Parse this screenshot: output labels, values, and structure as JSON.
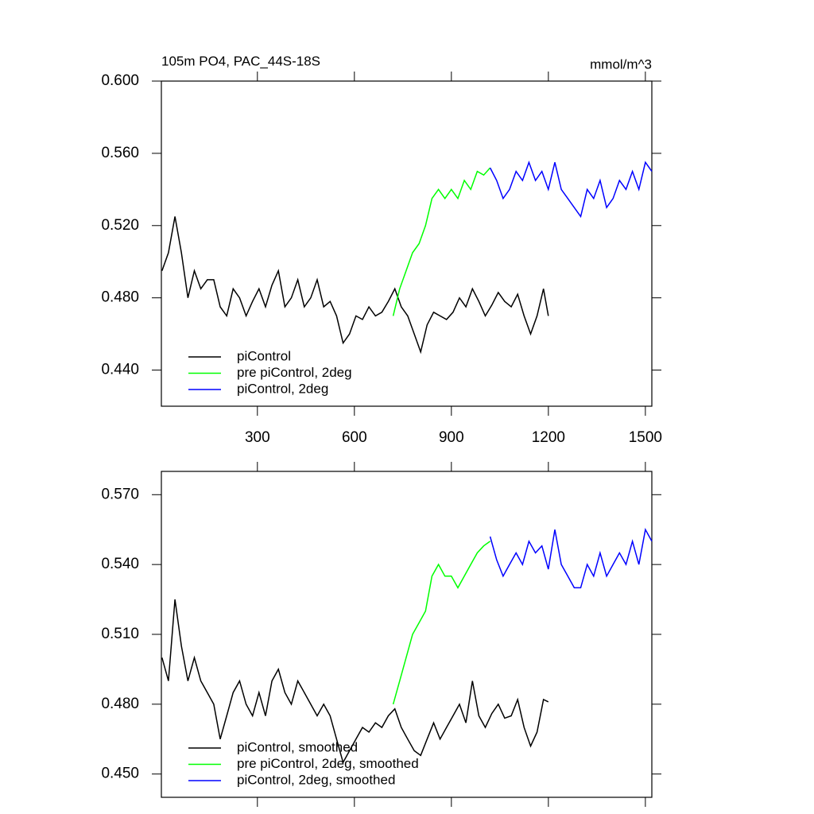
{
  "chart_data": [
    {
      "type": "line",
      "title": "105m PO4, PAC_44S-18S",
      "units": "mmol/m^3",
      "xlim": [
        3,
        1520
      ],
      "xticks": [
        300,
        600,
        900,
        1200,
        1500
      ],
      "xticklabels": true,
      "ylim": [
        0.42,
        0.6
      ],
      "yticks": [
        {
          "value": 0.44,
          "label": "0.440"
        },
        {
          "value": 0.48,
          "label": "0.480"
        },
        {
          "value": 0.52,
          "label": "0.520"
        },
        {
          "value": 0.56,
          "label": "0.560"
        },
        {
          "value": 0.6,
          "label": "0.600"
        }
      ],
      "legend": "lower left",
      "series": [
        {
          "name": "piControl",
          "color": "#000000",
          "x": [
            5,
            25,
            45,
            65,
            85,
            105,
            125,
            145,
            165,
            185,
            205,
            225,
            245,
            265,
            285,
            305,
            325,
            345,
            365,
            385,
            405,
            425,
            445,
            465,
            485,
            505,
            525,
            545,
            565,
            585,
            605,
            625,
            645,
            665,
            685,
            705,
            725,
            745,
            765,
            785,
            805,
            825,
            845,
            865,
            885,
            905,
            925,
            945,
            965,
            985,
            1005,
            1025,
            1045,
            1065,
            1085,
            1105,
            1125,
            1145,
            1165,
            1185,
            1200
          ],
          "values": [
            0.495,
            0.505,
            0.525,
            0.505,
            0.48,
            0.495,
            0.485,
            0.49,
            0.49,
            0.475,
            0.47,
            0.485,
            0.48,
            0.47,
            0.478,
            0.485,
            0.475,
            0.487,
            0.495,
            0.475,
            0.48,
            0.49,
            0.475,
            0.48,
            0.49,
            0.475,
            0.478,
            0.47,
            0.455,
            0.46,
            0.47,
            0.468,
            0.475,
            0.47,
            0.472,
            0.478,
            0.485,
            0.475,
            0.47,
            0.46,
            0.45,
            0.465,
            0.472,
            0.47,
            0.468,
            0.472,
            0.48,
            0.475,
            0.485,
            0.478,
            0.47,
            0.476,
            0.483,
            0.478,
            0.475,
            0.482,
            0.47,
            0.46,
            0.47,
            0.485,
            0.47
          ]
        },
        {
          "name": "pre piControl, 2deg",
          "color": "#00ff00",
          "x": [
            720,
            740,
            760,
            780,
            800,
            820,
            840,
            860,
            880,
            900,
            920,
            940,
            960,
            980,
            1000,
            1020
          ],
          "values": [
            0.47,
            0.485,
            0.495,
            0.505,
            0.51,
            0.52,
            0.535,
            0.54,
            0.535,
            0.54,
            0.535,
            0.545,
            0.54,
            0.55,
            0.548,
            0.552
          ]
        },
        {
          "name": "piControl, 2deg",
          "color": "#0000ff",
          "x": [
            1020,
            1040,
            1060,
            1080,
            1100,
            1120,
            1140,
            1160,
            1180,
            1200,
            1220,
            1240,
            1260,
            1280,
            1300,
            1320,
            1340,
            1360,
            1380,
            1400,
            1420,
            1440,
            1460,
            1480,
            1500,
            1520
          ],
          "values": [
            0.552,
            0.545,
            0.535,
            0.54,
            0.55,
            0.545,
            0.555,
            0.545,
            0.55,
            0.54,
            0.555,
            0.54,
            0.535,
            0.53,
            0.525,
            0.54,
            0.535,
            0.545,
            0.53,
            0.535,
            0.545,
            0.54,
            0.55,
            0.54,
            0.555,
            0.55
          ]
        }
      ]
    },
    {
      "type": "line",
      "xlim": [
        3,
        1520
      ],
      "xticks": [
        300,
        600,
        900,
        1200,
        1500
      ],
      "xticklabels": false,
      "ylim": [
        0.44,
        0.58
      ],
      "yticks": [
        {
          "value": 0.45,
          "label": "0.450"
        },
        {
          "value": 0.48,
          "label": "0.480"
        },
        {
          "value": 0.51,
          "label": "0.510"
        },
        {
          "value": 0.54,
          "label": "0.540"
        },
        {
          "value": 0.57,
          "label": "0.570"
        }
      ],
      "legend": "lower left",
      "series": [
        {
          "name": "piControl, smoothed",
          "color": "#000000",
          "x": [
            5,
            25,
            45,
            65,
            85,
            105,
            125,
            145,
            165,
            185,
            205,
            225,
            245,
            265,
            285,
            305,
            325,
            345,
            365,
            385,
            405,
            425,
            445,
            465,
            485,
            505,
            525,
            545,
            565,
            585,
            605,
            625,
            645,
            665,
            685,
            705,
            725,
            745,
            765,
            785,
            805,
            825,
            845,
            865,
            885,
            905,
            925,
            945,
            965,
            985,
            1005,
            1025,
            1045,
            1065,
            1085,
            1105,
            1125,
            1145,
            1165,
            1185,
            1200
          ],
          "values": [
            0.5,
            0.49,
            0.525,
            0.505,
            0.49,
            0.5,
            0.49,
            0.485,
            0.48,
            0.465,
            0.475,
            0.485,
            0.49,
            0.48,
            0.475,
            0.485,
            0.475,
            0.49,
            0.495,
            0.485,
            0.48,
            0.49,
            0.485,
            0.48,
            0.475,
            0.48,
            0.475,
            0.465,
            0.455,
            0.46,
            0.465,
            0.47,
            0.468,
            0.472,
            0.47,
            0.475,
            0.478,
            0.47,
            0.465,
            0.46,
            0.458,
            0.465,
            0.472,
            0.465,
            0.47,
            0.475,
            0.48,
            0.472,
            0.49,
            0.475,
            0.47,
            0.476,
            0.48,
            0.474,
            0.475,
            0.482,
            0.47,
            0.462,
            0.468,
            0.482,
            0.481
          ]
        },
        {
          "name": "pre piControl, 2deg, smoothed",
          "color": "#00ff00",
          "x": [
            720,
            740,
            760,
            780,
            800,
            820,
            840,
            860,
            880,
            900,
            920,
            940,
            960,
            980,
            1000,
            1020
          ],
          "values": [
            0.48,
            0.49,
            0.5,
            0.51,
            0.515,
            0.52,
            0.535,
            0.54,
            0.535,
            0.535,
            0.53,
            0.535,
            0.54,
            0.545,
            0.548,
            0.55
          ]
        },
        {
          "name": "piControl, 2deg, smoothed",
          "color": "#0000ff",
          "x": [
            1020,
            1040,
            1060,
            1080,
            1100,
            1120,
            1140,
            1160,
            1180,
            1200,
            1220,
            1240,
            1260,
            1280,
            1300,
            1320,
            1340,
            1360,
            1380,
            1400,
            1420,
            1440,
            1460,
            1480,
            1500,
            1520
          ],
          "values": [
            0.552,
            0.542,
            0.535,
            0.54,
            0.545,
            0.54,
            0.55,
            0.545,
            0.548,
            0.538,
            0.555,
            0.54,
            0.535,
            0.53,
            0.53,
            0.54,
            0.535,
            0.545,
            0.535,
            0.54,
            0.545,
            0.54,
            0.55,
            0.54,
            0.555,
            0.55
          ]
        }
      ]
    }
  ]
}
